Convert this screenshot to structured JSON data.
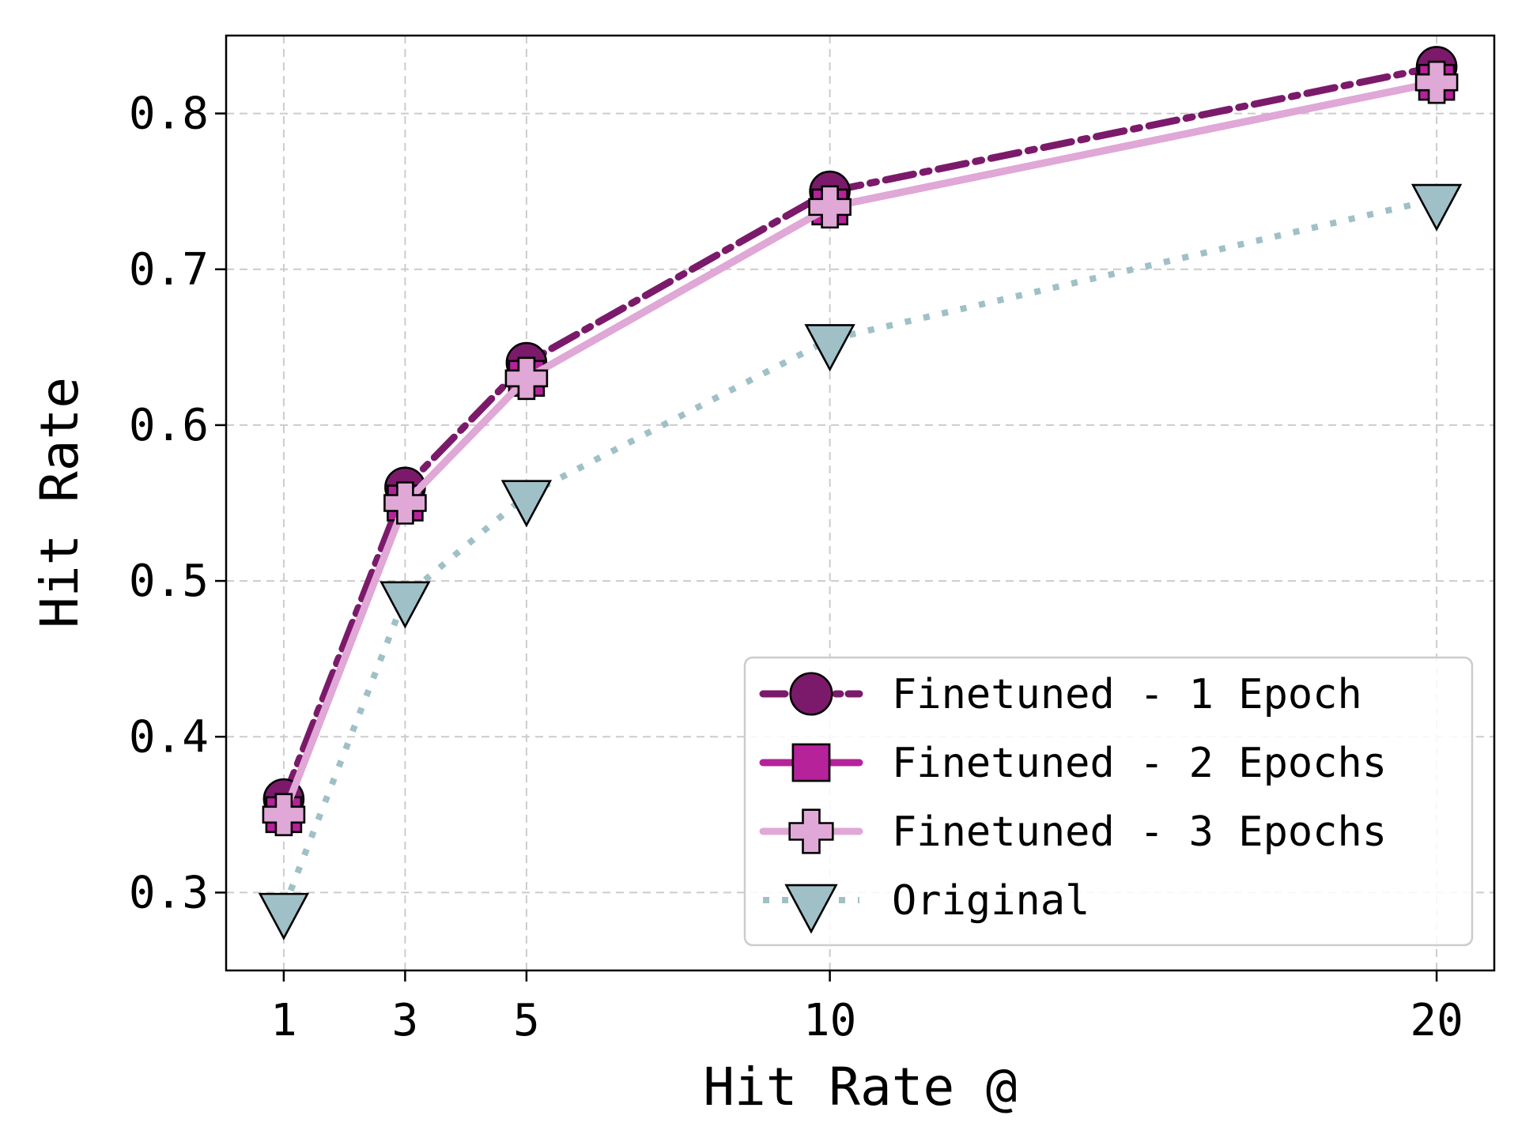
{
  "chart_data": {
    "type": "line",
    "title": "",
    "xlabel": "Hit Rate @",
    "ylabel": "Hit Rate",
    "x": [
      1,
      3,
      5,
      10,
      20
    ],
    "xticks": [
      "1",
      "3",
      "5",
      "10",
      "20"
    ],
    "yticks": [
      "0.3",
      "0.4",
      "0.5",
      "0.6",
      "0.7",
      "0.8"
    ],
    "xlim": [
      0.05,
      20.95
    ],
    "ylim": [
      0.25,
      0.85
    ],
    "grid": true,
    "legend_position": "bottom-right",
    "series": [
      {
        "name": "Finetuned - 1 Epoch",
        "values": [
          0.36,
          0.56,
          0.64,
          0.75,
          0.83
        ],
        "color": "#7b1a6a",
        "marker": "circle",
        "linestyle": "dashdot"
      },
      {
        "name": "Finetuned - 2 Epochs",
        "values": [
          0.35,
          0.55,
          0.63,
          0.74,
          0.82
        ],
        "color": "#b5229a",
        "marker": "square",
        "linestyle": "solid"
      },
      {
        "name": "Finetuned - 3 Epochs",
        "values": [
          0.35,
          0.55,
          0.63,
          0.74,
          0.82
        ],
        "color": "#e0a8d6",
        "marker": "plus",
        "linestyle": "solid"
      },
      {
        "name": "Original",
        "values": [
          0.29,
          0.49,
          0.555,
          0.655,
          0.745
        ],
        "color": "#9fc0c6",
        "marker": "triangle-down",
        "linestyle": "dotted"
      }
    ]
  }
}
